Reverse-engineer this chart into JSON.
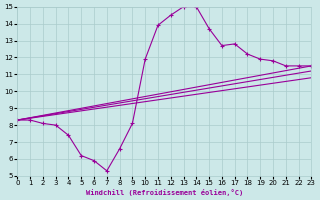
{
  "bg_color": "#cce8e8",
  "grid_color": "#aacccc",
  "line_color": "#990099",
  "marker": "+",
  "xlabel": "Windchill (Refroidissement éolien,°C)",
  "xlim": [
    0,
    23
  ],
  "ylim": [
    5,
    15
  ],
  "xticks": [
    0,
    1,
    2,
    3,
    4,
    5,
    6,
    7,
    8,
    9,
    10,
    11,
    12,
    13,
    14,
    15,
    16,
    17,
    18,
    19,
    20,
    21,
    22,
    23
  ],
  "yticks": [
    5,
    6,
    7,
    8,
    9,
    10,
    11,
    12,
    13,
    14,
    15
  ],
  "line1_x": [
    0,
    1,
    2,
    3,
    4,
    5,
    6,
    7,
    8,
    9,
    10,
    11,
    12,
    13,
    14,
    15,
    16,
    17,
    18,
    19,
    20,
    21,
    22,
    23
  ],
  "line1_y": [
    8.3,
    8.3,
    8.1,
    8.0,
    7.4,
    6.2,
    5.9,
    5.3,
    6.6,
    8.1,
    11.9,
    13.9,
    14.5,
    15.0,
    15.0,
    13.7,
    12.7,
    12.8,
    12.2,
    11.9,
    11.8,
    11.5,
    11.5,
    11.5
  ],
  "line2_x": [
    0,
    23
  ],
  "line2_y": [
    8.3,
    11.5
  ],
  "line3_x": [
    0,
    23
  ],
  "line3_y": [
    8.3,
    11.2
  ],
  "line4_x": [
    0,
    23
  ],
  "line4_y": [
    8.3,
    10.8
  ]
}
